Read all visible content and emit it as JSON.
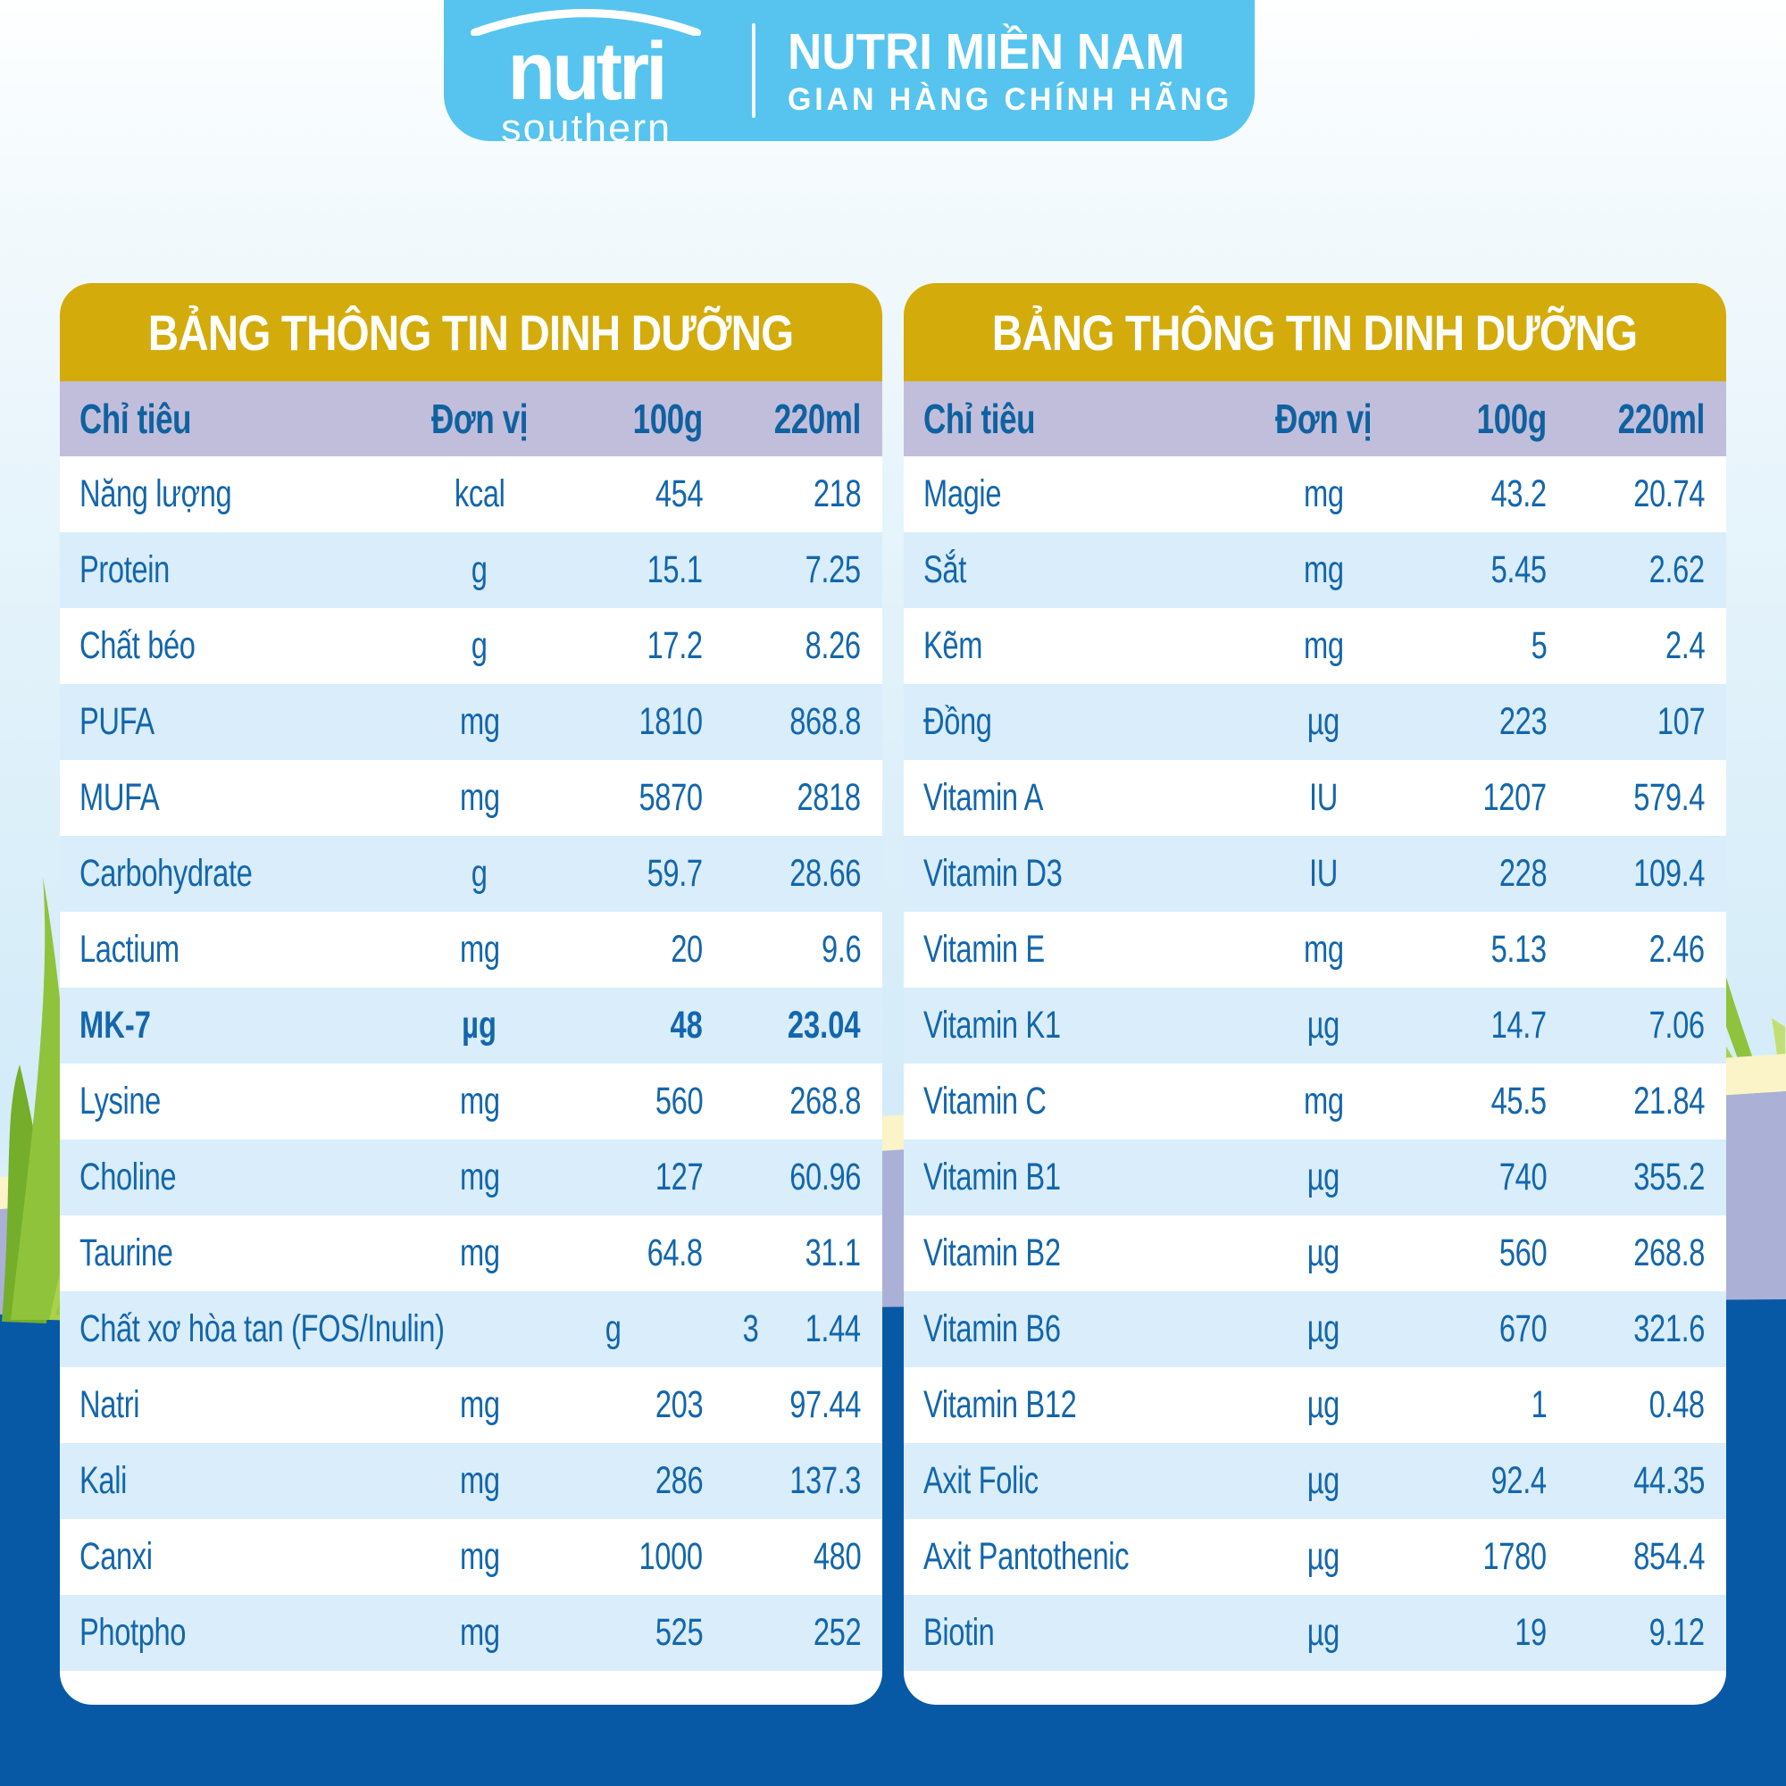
{
  "banner": {
    "logo": {
      "brand": "nutri",
      "sub": "southern"
    },
    "title": "NUTRI MIỀN NAM",
    "subtitle": "GIAN HÀNG CHÍNH HÃNG"
  },
  "tables": [
    {
      "title": "BẢNG THÔNG TIN DINH DƯỠNG",
      "columns": [
        "Chỉ tiêu",
        "Đơn vị",
        "100g",
        "220ml"
      ],
      "rows": [
        {
          "label": "Năng lượng",
          "unit": "kcal",
          "per100g": "454",
          "per220ml": "218",
          "bold": false
        },
        {
          "label": "Protein",
          "unit": "g",
          "per100g": "15.1",
          "per220ml": "7.25",
          "bold": false
        },
        {
          "label": "Chất béo",
          "unit": "g",
          "per100g": "17.2",
          "per220ml": "8.26",
          "bold": false
        },
        {
          "label": "PUFA",
          "unit": "mg",
          "per100g": "1810",
          "per220ml": "868.8",
          "bold": false
        },
        {
          "label": "MUFA",
          "unit": "mg",
          "per100g": "5870",
          "per220ml": "2818",
          "bold": false
        },
        {
          "label": "Carbohydrate",
          "unit": "g",
          "per100g": "59.7",
          "per220ml": "28.66",
          "bold": false
        },
        {
          "label": "Lactium",
          "unit": "mg",
          "per100g": "20",
          "per220ml": "9.6",
          "bold": false
        },
        {
          "label": "MK-7",
          "unit": "µg",
          "per100g": "48",
          "per220ml": "23.04",
          "bold": true
        },
        {
          "label": "Lysine",
          "unit": "mg",
          "per100g": "560",
          "per220ml": "268.8",
          "bold": false
        },
        {
          "label": "Choline",
          "unit": "mg",
          "per100g": "127",
          "per220ml": "60.96",
          "bold": false
        },
        {
          "label": "Taurine",
          "unit": "mg",
          "per100g": "64.8",
          "per220ml": "31.1",
          "bold": false
        },
        {
          "label": "Chất xơ hòa tan (FOS/Inulin)",
          "unit": "g",
          "per100g": "3",
          "per220ml": "1.44",
          "bold": false
        },
        {
          "label": "Natri",
          "unit": "mg",
          "per100g": "203",
          "per220ml": "97.44",
          "bold": false
        },
        {
          "label": "Kali",
          "unit": "mg",
          "per100g": "286",
          "per220ml": "137.3",
          "bold": false
        },
        {
          "label": "Canxi",
          "unit": "mg",
          "per100g": "1000",
          "per220ml": "480",
          "bold": false
        },
        {
          "label": "Photpho",
          "unit": "mg",
          "per100g": "525",
          "per220ml": "252",
          "bold": false
        }
      ]
    },
    {
      "title": "BẢNG THÔNG TIN DINH DƯỠNG",
      "columns": [
        "Chỉ tiêu",
        "Đơn vị",
        "100g",
        "220ml"
      ],
      "rows": [
        {
          "label": "Magie",
          "unit": "mg",
          "per100g": "43.2",
          "per220ml": "20.74",
          "bold": false
        },
        {
          "label": "Sắt",
          "unit": "mg",
          "per100g": "5.45",
          "per220ml": "2.62",
          "bold": false
        },
        {
          "label": "Kẽm",
          "unit": "mg",
          "per100g": "5",
          "per220ml": "2.4",
          "bold": false
        },
        {
          "label": "Đồng",
          "unit": "µg",
          "per100g": "223",
          "per220ml": "107",
          "bold": false
        },
        {
          "label": "Vitamin A",
          "unit": "IU",
          "per100g": "1207",
          "per220ml": "579.4",
          "bold": false
        },
        {
          "label": "Vitamin D3",
          "unit": "IU",
          "per100g": "228",
          "per220ml": "109.4",
          "bold": false
        },
        {
          "label": "Vitamin E",
          "unit": "mg",
          "per100g": "5.13",
          "per220ml": "2.46",
          "bold": false
        },
        {
          "label": "Vitamin K1",
          "unit": "µg",
          "per100g": "14.7",
          "per220ml": "7.06",
          "bold": false
        },
        {
          "label": "Vitamin C",
          "unit": "mg",
          "per100g": "45.5",
          "per220ml": "21.84",
          "bold": false
        },
        {
          "label": "Vitamin B1",
          "unit": "µg",
          "per100g": "740",
          "per220ml": "355.2",
          "bold": false
        },
        {
          "label": "Vitamin B2",
          "unit": "µg",
          "per100g": "560",
          "per220ml": "268.8",
          "bold": false
        },
        {
          "label": "Vitamin B6",
          "unit": "µg",
          "per100g": "670",
          "per220ml": "321.6",
          "bold": false
        },
        {
          "label": "Vitamin B12",
          "unit": "µg",
          "per100g": "1",
          "per220ml": "0.48",
          "bold": false
        },
        {
          "label": "Axit Folic",
          "unit": "µg",
          "per100g": "92.4",
          "per220ml": "44.35",
          "bold": false
        },
        {
          "label": "Axit Pantothenic",
          "unit": "µg",
          "per100g": "1780",
          "per220ml": "854.4",
          "bold": false
        },
        {
          "label": "Biotin",
          "unit": "µg",
          "per100g": "19",
          "per220ml": "9.12",
          "bold": false
        }
      ]
    }
  ],
  "colors": {
    "banner_blue": "#56C4EF",
    "table_header_gold": "#D3AB0B",
    "column_header_lavender": "#C1BEDC",
    "row_stripe_blue": "#D9EDFA",
    "text_blue": "#1366AC",
    "bottom_navy": "#0759A5",
    "hill_lavender": "#ABB0D6",
    "hill_cream": "#FAF4C8",
    "grass_green": "#8FC33C"
  }
}
